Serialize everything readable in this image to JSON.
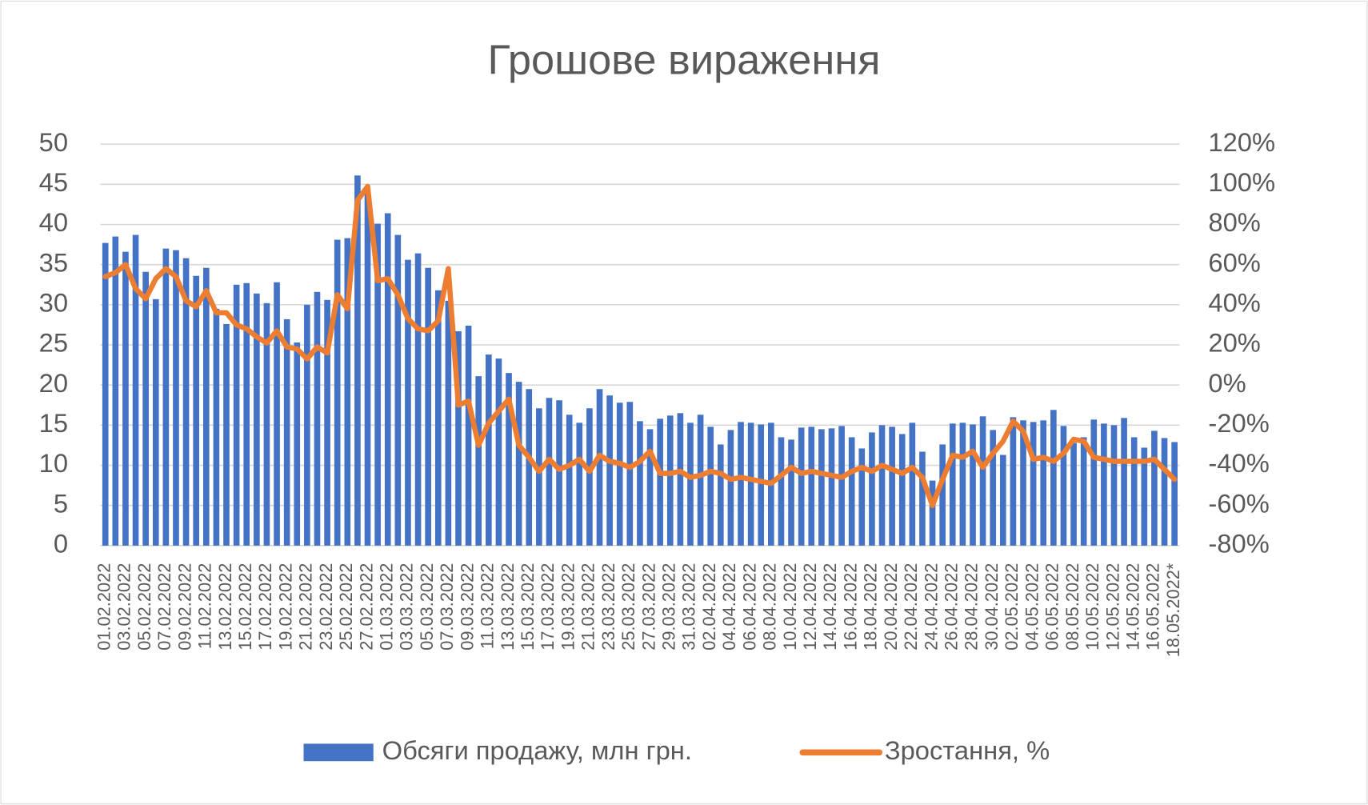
{
  "chart_data": {
    "type": "bar+line",
    "title": "Грошове вираження",
    "categories": [
      "01.02.2022",
      null,
      "03.02.2022",
      null,
      "05.02.2022",
      null,
      "07.02.2022",
      null,
      "09.02.2022",
      null,
      "11.02.2022",
      null,
      "13.02.2022",
      null,
      "15.02.2022",
      null,
      "17.02.2022",
      null,
      "19.02.2022",
      null,
      "21.02.2022",
      null,
      "23.02.2022",
      null,
      "25.02.2022",
      null,
      "27.02.2022",
      null,
      "01.03.2022",
      null,
      "03.03.2022",
      null,
      "05.03.2022",
      null,
      "07.03.2022",
      null,
      "09.03.2022",
      null,
      "11.03.2022",
      null,
      "13.03.2022",
      null,
      "15.03.2022",
      null,
      "17.03.2022",
      null,
      "19.03.2022",
      null,
      "21.03.2022",
      null,
      "23.03.2022",
      null,
      "25.03.2022",
      null,
      "27.03.2022",
      null,
      "29.03.2022",
      null,
      "31.03.2022",
      null,
      "02.04.2022",
      null,
      "04.04.2022",
      null,
      "06.04.2022",
      null,
      "08.04.2022",
      null,
      "10.04.2022",
      null,
      "12.04.2022",
      null,
      "14.04.2022",
      null,
      "16.04.2022",
      null,
      "18.04.2022",
      null,
      "20.04.2022",
      null,
      "22.04.2022",
      null,
      "24.04.2022",
      null,
      "26.04.2022",
      null,
      "28.04.2022",
      null,
      "30.04.2022",
      null,
      "02.05.2022",
      null,
      "04.05.2022",
      null,
      "06.05.2022",
      null,
      "08.05.2022",
      null,
      "10.05.2022",
      null,
      "12.05.2022",
      null,
      "14.05.2022",
      null,
      "16.05.2022",
      null,
      "18.05.2022*"
    ],
    "series": [
      {
        "name": "Обсяги продажу, млн грн.",
        "type": "bar",
        "color": "#4472c4",
        "values": [
          37.7,
          38.5,
          36.6,
          38.7,
          34.1,
          30.7,
          37.0,
          36.8,
          35.8,
          33.6,
          34.6,
          29.5,
          27.6,
          32.5,
          32.7,
          31.4,
          30.2,
          32.8,
          28.2,
          25.3,
          30.0,
          31.6,
          30.6,
          38.1,
          38.3,
          46.1,
          44.0,
          40.1,
          41.4,
          38.7,
          35.6,
          36.4,
          34.6,
          31.8,
          30.5,
          26.7,
          27.4,
          21.1,
          23.8,
          23.3,
          21.5,
          20.4,
          19.5,
          17.1,
          18.4,
          18.1,
          16.3,
          15.3,
          17.1,
          19.5,
          18.7,
          17.8,
          17.9,
          15.5,
          14.5,
          15.8,
          16.2,
          16.5,
          15.3,
          16.3,
          14.8,
          12.6,
          14.4,
          15.4,
          15.3,
          15.1,
          15.3,
          13.5,
          13.2,
          14.7,
          14.8,
          14.5,
          14.6,
          14.9,
          13.5,
          12.1,
          14.1,
          15.0,
          14.8,
          13.9,
          15.3,
          11.7,
          8.1,
          12.6,
          15.2,
          15.3,
          15.1,
          16.1,
          14.4,
          11.3,
          16.0,
          15.6,
          15.4,
          15.6,
          16.9,
          14.9,
          12.8,
          13.5,
          15.7,
          15.2,
          15.0,
          15.9,
          13.5,
          12.2,
          14.3,
          13.4,
          12.9
        ]
      },
      {
        "name": "Зростання, %",
        "type": "line",
        "axis": "y2",
        "color": "#ed7d31",
        "values": [
          54,
          56,
          60,
          48,
          43,
          53,
          58,
          54,
          42,
          39,
          47,
          36,
          36,
          30,
          28,
          24,
          21,
          27,
          19,
          18,
          13,
          19,
          16,
          45,
          38,
          92,
          99,
          52,
          53,
          45,
          33,
          28,
          27,
          32,
          58,
          -10,
          -8,
          -30,
          -19,
          -13,
          -7,
          -30,
          -36,
          -43,
          -37,
          -42,
          -40,
          -37,
          -43,
          -35,
          -38,
          -39,
          -41,
          -38,
          -33,
          -44,
          -44,
          -43,
          -46,
          -45,
          -43,
          -44,
          -47,
          -46,
          -47,
          -48,
          -49,
          -45,
          -41,
          -44,
          -43,
          -44,
          -45,
          -46,
          -43,
          -41,
          -43,
          -40,
          -42,
          -44,
          -41,
          -46,
          -60,
          -47,
          -35,
          -36,
          -33,
          -41,
          -34,
          -28,
          -18,
          -23,
          -37,
          -36,
          -38,
          -34,
          -27,
          -28,
          -36,
          -37,
          -38,
          -38,
          -38,
          -38,
          -37,
          -42,
          -47
        ]
      }
    ],
    "ylim": [
      0,
      50
    ],
    "yticks": [
      0,
      5,
      10,
      15,
      20,
      25,
      30,
      35,
      40,
      45,
      50
    ],
    "y2lim": [
      -80,
      120
    ],
    "y2ticks": [
      {
        "value": -80,
        "label": "-80%"
      },
      {
        "value": -60,
        "label": "-60%"
      },
      {
        "value": -40,
        "label": "-40%"
      },
      {
        "value": -20,
        "label": "-20%"
      },
      {
        "value": 0,
        "label": "0%"
      },
      {
        "value": 20,
        "label": "20%"
      },
      {
        "value": 40,
        "label": "40%"
      },
      {
        "value": 60,
        "label": "60%"
      },
      {
        "value": 80,
        "label": "80%"
      },
      {
        "value": 100,
        "label": "100%"
      },
      {
        "value": 120,
        "label": "120%"
      }
    ],
    "grid": true,
    "legend": "bottom"
  }
}
